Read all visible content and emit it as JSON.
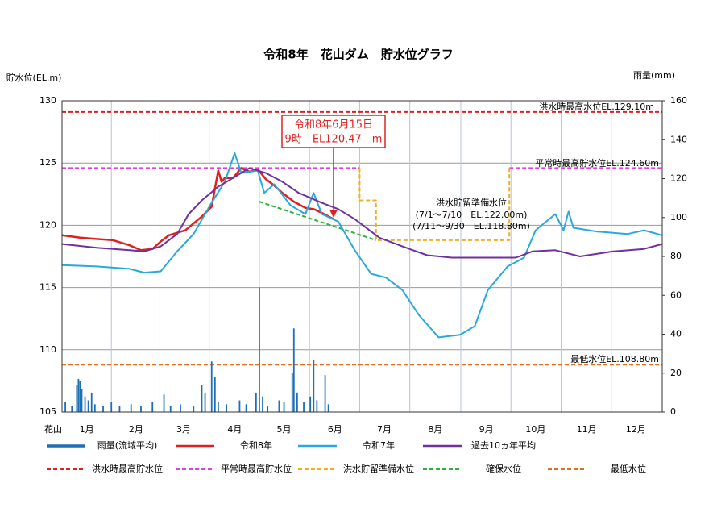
{
  "chart_data": {
    "type": "line",
    "title": "令和8年　花山ダム　貯水位グラフ",
    "y_axis_label": "貯水位(EL.m)",
    "y2_axis_label": "雨量(mm)",
    "x_axis_name": "花山",
    "xlim": [
      0,
      365
    ],
    "xticks": [
      {
        "value": 15,
        "label": "1月"
      },
      {
        "value": 45,
        "label": "2月"
      },
      {
        "value": 74,
        "label": "3月"
      },
      {
        "value": 105,
        "label": "4月"
      },
      {
        "value": 135,
        "label": "5月"
      },
      {
        "value": 166,
        "label": "6月"
      },
      {
        "value": 196,
        "label": "7月"
      },
      {
        "value": 227,
        "label": "8月"
      },
      {
        "value": 258,
        "label": "9月"
      },
      {
        "value": 288,
        "label": "10月"
      },
      {
        "value": 319,
        "label": "11月"
      },
      {
        "value": 349,
        "label": "12月"
      }
    ],
    "ylim": [
      105,
      130
    ],
    "yticks": [
      105,
      110,
      115,
      120,
      125,
      130
    ],
    "y2lim": [
      0,
      160
    ],
    "y2ticks": [
      0,
      20,
      40,
      60,
      80,
      100,
      120,
      140,
      160
    ],
    "grid": true,
    "series": [
      {
        "name": "雨量(流域平均)",
        "color": "#1f6fb5",
        "axis": "y2",
        "kind": "bar",
        "x": [
          2,
          6,
          9,
          10,
          11,
          12,
          14,
          16,
          18,
          20,
          25,
          30,
          35,
          42,
          48,
          55,
          62,
          66,
          72,
          80,
          85,
          87,
          91,
          93,
          95,
          100,
          108,
          112,
          118,
          120,
          122,
          125,
          132,
          135,
          140,
          141,
          143,
          147,
          151,
          153,
          155,
          160,
          162
        ],
        "values": [
          5,
          3,
          14,
          17,
          16,
          12,
          8,
          6,
          10,
          4,
          3,
          5,
          3,
          4,
          3,
          5,
          9,
          3,
          4,
          3,
          14,
          10,
          26,
          18,
          5,
          4,
          6,
          4,
          10,
          64,
          8,
          3,
          6,
          5,
          20,
          43,
          10,
          5,
          8,
          27,
          6,
          19,
          4
        ]
      },
      {
        "name": "令和8年",
        "color": "#e02020",
        "width": 2.5,
        "x": [
          0,
          11,
          21,
          31,
          41,
          48,
          55,
          60,
          65,
          75,
          85,
          91,
          95,
          97,
          99,
          104,
          109,
          114,
          119,
          124,
          129,
          134,
          141,
          148,
          153,
          158,
          165
        ],
        "values": [
          119.2,
          119.0,
          118.9,
          118.8,
          118.4,
          118.0,
          118.1,
          118.7,
          119.2,
          119.6,
          120.7,
          121.5,
          124.4,
          123.5,
          123.8,
          123.8,
          124.6,
          124.3,
          124.5,
          123.7,
          123.2,
          122.6,
          121.9,
          121.4,
          121.3,
          121.0,
          120.5
        ]
      },
      {
        "name": "令和7年",
        "color": "#29a8e0",
        "width": 2,
        "x": [
          0,
          21,
          41,
          50,
          60,
          70,
          80,
          90,
          99,
          105,
          109,
          119,
          123,
          129,
          139,
          148,
          153,
          158,
          168,
          178,
          188,
          197,
          207,
          217,
          229,
          242,
          251,
          259,
          271,
          281,
          288,
          300,
          305,
          308,
          311,
          325,
          344,
          354,
          365
        ],
        "values": [
          116.8,
          116.7,
          116.5,
          116.2,
          116.3,
          117.9,
          119.3,
          121.6,
          123.5,
          125.8,
          124.2,
          124.4,
          122.6,
          123.3,
          121.6,
          120.9,
          122.6,
          120.9,
          120.3,
          118.0,
          116.1,
          115.8,
          114.8,
          112.8,
          111.0,
          111.2,
          111.9,
          114.8,
          116.7,
          117.4,
          119.6,
          120.9,
          119.6,
          121.1,
          119.8,
          119.5,
          119.3,
          119.6,
          119.2
        ]
      },
      {
        "name": "過去10ヵ年平均",
        "color": "#7030a0",
        "width": 2,
        "x": [
          0,
          21,
          41,
          50,
          60,
          70,
          77,
          85,
          95,
          104,
          114,
          124,
          134,
          144,
          158,
          168,
          178,
          193,
          207,
          222,
          237,
          256,
          276,
          286,
          300,
          315,
          335,
          354,
          365
        ],
        "values": [
          118.5,
          118.2,
          118.0,
          117.9,
          118.3,
          119.3,
          120.9,
          122.0,
          123.1,
          123.8,
          124.6,
          124.2,
          123.5,
          122.6,
          121.8,
          121.3,
          120.5,
          119.0,
          118.3,
          117.6,
          117.4,
          117.4,
          117.4,
          117.9,
          118.0,
          117.5,
          117.9,
          118.1,
          118.5
        ]
      },
      {
        "name": "洪水時最高貯水位",
        "color": "#e02020",
        "dash": true,
        "x": [
          0,
          365
        ],
        "values": [
          129.1,
          129.1
        ]
      },
      {
        "name": "平常時最高貯水位",
        "color": "#e040e0",
        "dash": true,
        "x": [
          0,
          181,
          181,
          272,
          365
        ],
        "values": [
          124.6,
          124.6,
          null,
          124.6,
          124.6
        ]
      },
      {
        "name": "洪水貯留準備水位",
        "color": "#f0b020",
        "dash": true,
        "x": [
          181,
          181,
          191,
          191,
          272,
          272
        ],
        "values": [
          124.6,
          122.0,
          122.0,
          118.8,
          118.8,
          124.6
        ]
      },
      {
        "name": "確保水位",
        "color": "#30b040",
        "dash": true,
        "x": [
          120,
          191
        ],
        "values": [
          121.9,
          118.8
        ]
      },
      {
        "name": "最低水位",
        "color": "#e07020",
        "dash": true,
        "x": [
          0,
          365
        ],
        "values": [
          108.8,
          108.8
        ]
      }
    ],
    "annotation_box": [
      "令和8年6月15日",
      "9時　EL120.47　m"
    ],
    "reference_labels": [
      "洪水時最高水位EL.129.10m",
      "平常時最高貯水位EL.124.60m",
      "最低水位EL.108.80m",
      "洪水貯留準備水位",
      "(7/1～7/10　EL.122.00m)",
      "(7/11～9/30　EL.118.80m)"
    ]
  }
}
